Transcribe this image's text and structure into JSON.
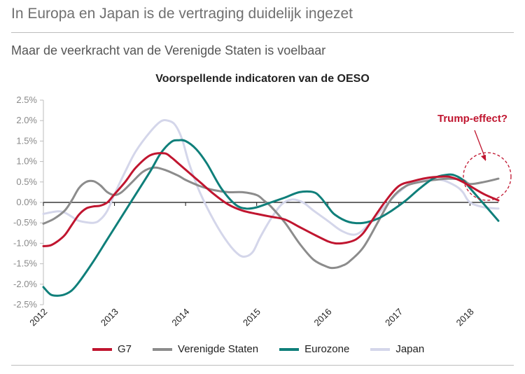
{
  "headline": "In Europa en Japan is de vertraging duidelijk ingezet",
  "subheadline": "Maar de veerkracht van de Verenigde Staten is voelbaar",
  "chart_data": {
    "type": "line",
    "title": "Voorspellende indicatoren van de OESO",
    "xlabel": "",
    "ylabel": "",
    "xlim": [
      2012,
      2018.4
    ],
    "ylim": [
      -2.5,
      2.5
    ],
    "y_ticks": [
      "2.5%",
      "2.0%",
      "1.5%",
      "1.0%",
      "0.5%",
      "0.0%",
      "-0.5%",
      "-1.0%",
      "-1.5%",
      "-2.0%",
      "-2.5%"
    ],
    "y_tick_values": [
      2.5,
      2.0,
      1.5,
      1.0,
      0.5,
      0.0,
      -0.5,
      -1.0,
      -1.5,
      -2.0,
      -2.5
    ],
    "x_ticks": [
      "2012",
      "2013",
      "2014",
      "2015",
      "2016",
      "2017",
      "2018"
    ],
    "x_tick_values": [
      2012,
      2013,
      2014,
      2015,
      2016,
      2017,
      2018
    ],
    "annotation": {
      "text": "Trump-effect?",
      "at": [
        2018.4,
        0.6
      ]
    },
    "series": [
      {
        "name": "G7",
        "color": "#c0152f",
        "x": [
          2012.0,
          2012.1,
          2012.2,
          2012.3,
          2012.4,
          2012.5,
          2012.6,
          2012.7,
          2012.8,
          2012.9,
          2013.0,
          2013.15,
          2013.3,
          2013.5,
          2013.7,
          2013.8,
          2013.9,
          2014.0,
          2014.2,
          2014.4,
          2014.6,
          2014.8,
          2015.0,
          2015.2,
          2015.4,
          2015.6,
          2015.8,
          2016.0,
          2016.1,
          2016.2,
          2016.3,
          2016.4,
          2016.5,
          2016.6,
          2016.8,
          2017.0,
          2017.2,
          2017.4,
          2017.6,
          2017.7,
          2017.8,
          2017.9,
          2018.0,
          2018.2,
          2018.4
        ],
        "y": [
          -1.07,
          -1.05,
          -0.95,
          -0.8,
          -0.55,
          -0.3,
          -0.15,
          -0.1,
          -0.08,
          0.0,
          0.2,
          0.5,
          0.85,
          1.15,
          1.2,
          1.1,
          0.95,
          0.8,
          0.5,
          0.2,
          -0.05,
          -0.2,
          -0.28,
          -0.35,
          -0.42,
          -0.6,
          -0.78,
          -0.95,
          -1.0,
          -1.0,
          -0.97,
          -0.9,
          -0.75,
          -0.5,
          0.0,
          0.4,
          0.52,
          0.6,
          0.63,
          0.63,
          0.58,
          0.5,
          0.4,
          0.2,
          0.05
        ]
      },
      {
        "name": "Verenigde Staten",
        "color": "#8c8c8c",
        "x": [
          2012.0,
          2012.15,
          2012.3,
          2012.4,
          2012.5,
          2012.6,
          2012.7,
          2012.8,
          2012.9,
          2013.0,
          2013.1,
          2013.25,
          2013.4,
          2013.55,
          2013.7,
          2013.9,
          2014.0,
          2014.2,
          2014.4,
          2014.6,
          2014.8,
          2015.0,
          2015.1,
          2015.2,
          2015.4,
          2015.6,
          2015.8,
          2016.0,
          2016.1,
          2016.2,
          2016.3,
          2016.5,
          2016.7,
          2016.9,
          2017.1,
          2017.3,
          2017.5,
          2017.7,
          2017.9,
          2018.0,
          2018.2,
          2018.4
        ],
        "y": [
          -0.52,
          -0.4,
          -0.2,
          0.05,
          0.35,
          0.5,
          0.52,
          0.42,
          0.25,
          0.18,
          0.25,
          0.5,
          0.75,
          0.85,
          0.8,
          0.65,
          0.55,
          0.4,
          0.3,
          0.25,
          0.25,
          0.18,
          0.05,
          -0.1,
          -0.5,
          -1.0,
          -1.4,
          -1.58,
          -1.6,
          -1.55,
          -1.45,
          -1.1,
          -0.5,
          0.1,
          0.4,
          0.5,
          0.55,
          0.58,
          0.55,
          0.45,
          0.5,
          0.58
        ]
      },
      {
        "name": "Eurozone",
        "color": "#0f7f7a",
        "x": [
          2012.0,
          2012.1,
          2012.2,
          2012.3,
          2012.4,
          2012.5,
          2012.7,
          2012.9,
          2013.1,
          2013.3,
          2013.5,
          2013.65,
          2013.8,
          2013.9,
          2014.0,
          2014.15,
          2014.3,
          2014.5,
          2014.7,
          2014.85,
          2015.0,
          2015.2,
          2015.4,
          2015.6,
          2015.8,
          2015.9,
          2016.0,
          2016.1,
          2016.3,
          2016.5,
          2016.7,
          2016.9,
          2017.1,
          2017.3,
          2017.5,
          2017.7,
          2017.8,
          2017.9,
          2018.0,
          2018.2,
          2018.4
        ],
        "y": [
          -2.07,
          -2.25,
          -2.28,
          -2.25,
          -2.15,
          -1.95,
          -1.45,
          -0.9,
          -0.35,
          0.2,
          0.75,
          1.2,
          1.48,
          1.52,
          1.5,
          1.3,
          0.95,
          0.35,
          -0.05,
          -0.15,
          -0.12,
          0.0,
          0.12,
          0.25,
          0.25,
          0.12,
          -0.1,
          -0.3,
          -0.48,
          -0.5,
          -0.4,
          -0.2,
          0.05,
          0.35,
          0.6,
          0.68,
          0.65,
          0.55,
          0.35,
          -0.05,
          -0.45
        ]
      },
      {
        "name": "Japan",
        "color": "#d4d6ea",
        "x": [
          2012.0,
          2012.2,
          2012.3,
          2012.4,
          2012.5,
          2012.7,
          2012.8,
          2012.9,
          2013.0,
          2013.15,
          2013.3,
          2013.5,
          2013.65,
          2013.75,
          2013.85,
          2013.95,
          2014.05,
          2014.2,
          2014.4,
          2014.6,
          2014.75,
          2014.85,
          2014.95,
          2015.05,
          2015.2,
          2015.35,
          2015.5,
          2015.65,
          2015.8,
          2016.0,
          2016.2,
          2016.4,
          2016.6,
          2016.8,
          2017.0,
          2017.2,
          2017.4,
          2017.6,
          2017.8,
          2017.9,
          2018.0,
          2018.2,
          2018.4
        ],
        "y": [
          -0.28,
          -0.22,
          -0.25,
          -0.35,
          -0.45,
          -0.5,
          -0.42,
          -0.2,
          0.2,
          0.75,
          1.25,
          1.72,
          1.98,
          2.0,
          1.9,
          1.55,
          0.95,
          0.25,
          -0.45,
          -1.0,
          -1.28,
          -1.32,
          -1.2,
          -0.85,
          -0.4,
          -0.05,
          0.07,
          0.0,
          -0.2,
          -0.45,
          -0.7,
          -0.78,
          -0.5,
          -0.1,
          0.25,
          0.5,
          0.55,
          0.55,
          0.4,
          0.25,
          0.0,
          -0.12,
          -0.15
        ]
      }
    ]
  }
}
